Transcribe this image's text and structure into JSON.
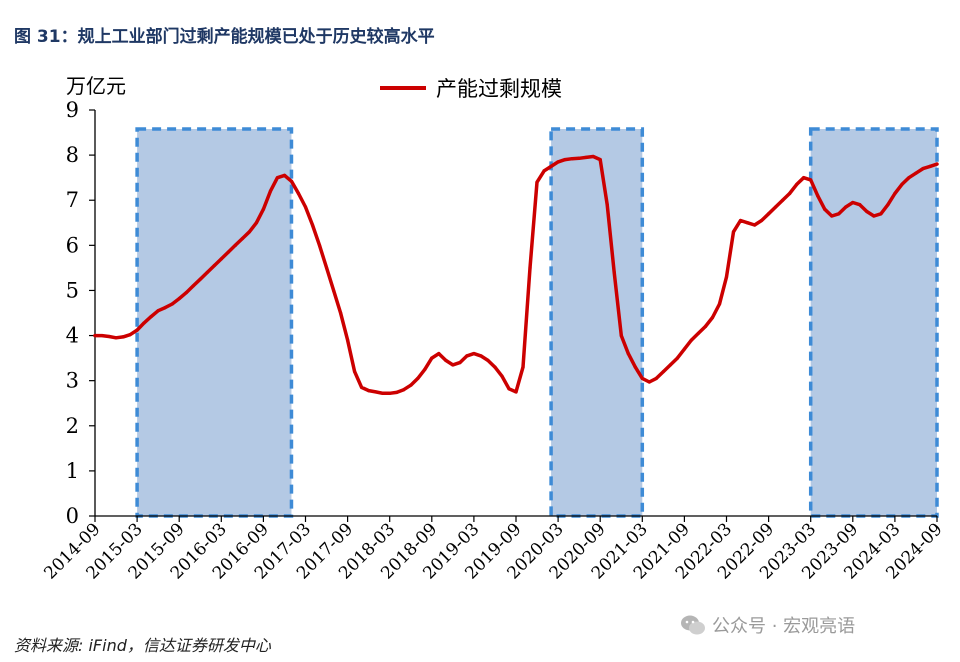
{
  "figure_title": "图 31：规上工业部门过剩产能规模已处于历史较高水平",
  "source_note": "资料来源: iFind，信达证券研发中心",
  "watermark": {
    "text": "公众号 · 宏观亮语",
    "icon": "wechat-icon"
  },
  "colors": {
    "line": "#cc0000",
    "highlight_fill": "#b4c9e4",
    "highlight_border": "#3e8bd6",
    "title": "#1f3864"
  },
  "chart_data": {
    "type": "line",
    "title": "图 31：规上工业部门过剩产能规模已处于历史较高水平",
    "ylabel": "万亿元",
    "xlabel": "",
    "ylim": [
      0,
      9
    ],
    "yticks": [
      0,
      1,
      2,
      3,
      4,
      5,
      6,
      7,
      8,
      9
    ],
    "xlim": [
      "2014-09",
      "2024-09"
    ],
    "xticks": [
      "2014-09",
      "2015-03",
      "2015-09",
      "2016-03",
      "2016-09",
      "2017-03",
      "2017-09",
      "2018-03",
      "2018-09",
      "2019-03",
      "2019-09",
      "2020-03",
      "2020-09",
      "2021-03",
      "2021-09",
      "2022-03",
      "2022-09",
      "2023-03",
      "2023-09",
      "2024-03",
      "2024-09"
    ],
    "legend": {
      "position": "top",
      "entries": [
        "产能过剩规模"
      ]
    },
    "grid": false,
    "highlighted_ranges": [
      {
        "start": "2015-03",
        "end": "2017-01"
      },
      {
        "start": "2020-02",
        "end": "2021-03"
      },
      {
        "start": "2023-03",
        "end": "2024-09"
      }
    ],
    "series": [
      {
        "name": "产能过剩规模",
        "color": "#cc0000",
        "x": [
          "2014-09",
          "2014-10",
          "2014-11",
          "2014-12",
          "2015-01",
          "2015-02",
          "2015-03",
          "2015-04",
          "2015-05",
          "2015-06",
          "2015-07",
          "2015-08",
          "2015-09",
          "2015-10",
          "2015-11",
          "2015-12",
          "2016-01",
          "2016-02",
          "2016-03",
          "2016-04",
          "2016-05",
          "2016-06",
          "2016-07",
          "2016-08",
          "2016-09",
          "2016-10",
          "2016-11",
          "2016-12",
          "2017-01",
          "2017-02",
          "2017-03",
          "2017-04",
          "2017-05",
          "2017-06",
          "2017-07",
          "2017-08",
          "2017-09",
          "2017-10",
          "2017-11",
          "2017-12",
          "2018-01",
          "2018-02",
          "2018-03",
          "2018-04",
          "2018-05",
          "2018-06",
          "2018-07",
          "2018-08",
          "2018-09",
          "2018-10",
          "2018-11",
          "2018-12",
          "2019-01",
          "2019-02",
          "2019-03",
          "2019-04",
          "2019-05",
          "2019-06",
          "2019-07",
          "2019-08",
          "2019-09",
          "2019-10",
          "2019-11",
          "2019-12",
          "2020-01",
          "2020-02",
          "2020-03",
          "2020-04",
          "2020-05",
          "2020-06",
          "2020-07",
          "2020-08",
          "2020-09",
          "2020-10",
          "2020-11",
          "2020-12",
          "2021-01",
          "2021-02",
          "2021-03",
          "2021-04",
          "2021-05",
          "2021-06",
          "2021-07",
          "2021-08",
          "2021-09",
          "2021-10",
          "2021-11",
          "2021-12",
          "2022-01",
          "2022-02",
          "2022-03",
          "2022-04",
          "2022-05",
          "2022-06",
          "2022-07",
          "2022-08",
          "2022-09",
          "2022-10",
          "2022-11",
          "2022-12",
          "2023-01",
          "2023-02",
          "2023-03",
          "2023-04",
          "2023-05",
          "2023-06",
          "2023-07",
          "2023-08",
          "2023-09",
          "2023-10",
          "2023-11",
          "2023-12",
          "2024-01",
          "2024-02",
          "2024-03",
          "2024-04",
          "2024-05",
          "2024-06",
          "2024-07",
          "2024-08",
          "2024-09"
        ],
        "values": [
          4.0,
          4.0,
          3.98,
          3.95,
          3.97,
          4.02,
          4.12,
          4.28,
          4.42,
          4.55,
          4.62,
          4.7,
          4.82,
          4.95,
          5.1,
          5.25,
          5.4,
          5.55,
          5.7,
          5.85,
          6.0,
          6.15,
          6.3,
          6.5,
          6.8,
          7.2,
          7.5,
          7.55,
          7.42,
          7.15,
          6.85,
          6.45,
          6.0,
          5.5,
          5.0,
          4.5,
          3.9,
          3.2,
          2.85,
          2.78,
          2.75,
          2.72,
          2.72,
          2.74,
          2.8,
          2.9,
          3.05,
          3.25,
          3.5,
          3.6,
          3.45,
          3.35,
          3.4,
          3.55,
          3.6,
          3.55,
          3.45,
          3.3,
          3.1,
          2.82,
          2.75,
          3.3,
          5.5,
          7.4,
          7.65,
          7.75,
          7.85,
          7.9,
          7.92,
          7.93,
          7.95,
          7.97,
          7.9,
          6.9,
          5.4,
          4.0,
          3.6,
          3.3,
          3.05,
          2.97,
          3.05,
          3.2,
          3.35,
          3.5,
          3.7,
          3.9,
          4.05,
          4.2,
          4.4,
          4.7,
          5.3,
          6.3,
          6.55,
          6.5,
          6.45,
          6.55,
          6.7,
          6.85,
          7.0,
          7.15,
          7.35,
          7.5,
          7.45,
          7.1,
          6.8,
          6.65,
          6.7,
          6.85,
          6.95,
          6.9,
          6.75,
          6.65,
          6.7,
          6.9,
          7.15,
          7.35,
          7.5,
          7.6,
          7.7,
          7.75,
          7.8
        ]
      }
    ]
  }
}
